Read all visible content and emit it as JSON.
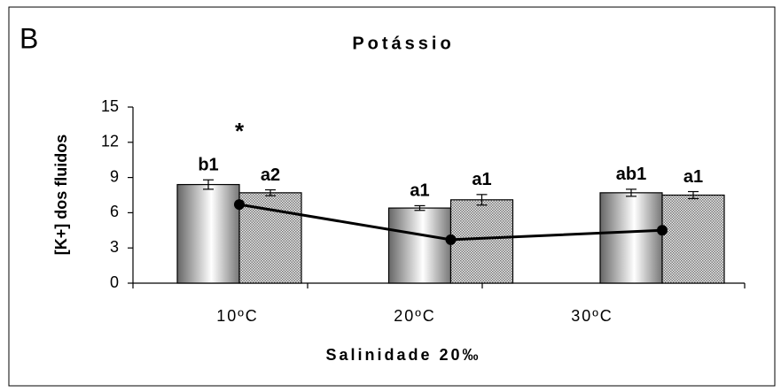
{
  "chart_data": {
    "type": "bar",
    "panel": "B",
    "title": "Potássio",
    "y_label": "[K+] dos fluidos",
    "x_label": "Salinidade 20‰",
    "annotation": "*",
    "categories": [
      "10ºC",
      "20ºC",
      "30ºC"
    ],
    "series": [
      {
        "fill": "gradient",
        "color": "#888888",
        "values": [
          8.4,
          6.4,
          7.7
        ],
        "errors": [
          0.4,
          0.2,
          0.3
        ],
        "labels": [
          "b1",
          "a1",
          "ab1"
        ]
      },
      {
        "fill": "hatch",
        "color": "#777777",
        "values": [
          7.7,
          7.1,
          7.5
        ],
        "errors": [
          0.25,
          0.45,
          0.3
        ],
        "labels": [
          "a2",
          "a1",
          "a1"
        ]
      }
    ],
    "line": {
      "color": "#000000",
      "values": [
        6.7,
        3.7,
        4.5
      ]
    },
    "ylim": [
      0,
      15
    ],
    "yticks": [
      0,
      3,
      6,
      9,
      12,
      15
    ]
  }
}
